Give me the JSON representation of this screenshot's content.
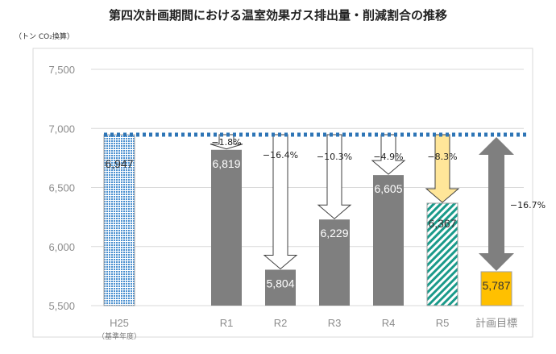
{
  "chart_data": {
    "type": "bar",
    "title": "第四次計画期間における温室効果ガス排出量・削減割合の推移",
    "ylabel": "（トン CO₂換算）",
    "ylim": [
      5500,
      7500
    ],
    "yticks": [
      "5,500",
      "6,000",
      "6,500",
      "7,000",
      "7,500"
    ],
    "ytick_values": [
      5500,
      6000,
      6500,
      7000,
      7500
    ],
    "grid": true,
    "categories": [
      "H25",
      "",
      "R1",
      "R2",
      "R3",
      "R4",
      "R5",
      "計画目標"
    ],
    "category_sublabels": {
      "H25": "（基準年度）"
    },
    "values": [
      6947,
      null,
      6819,
      5804,
      6229,
      6605,
      6367,
      5787
    ],
    "data_labels": [
      "6,947",
      "",
      "6,819",
      "5,804",
      "6,229",
      "6,605",
      "6,367",
      "5,787"
    ],
    "reduction_labels": [
      "",
      "",
      "−1.8%",
      "−16.4%",
      "−10.3%",
      "−4.9%",
      "−8.3%",
      "−16.7%"
    ],
    "baseline_value": 6947,
    "colors": {
      "base": "#4a90d0",
      "actual": "#7f7f7f",
      "r5_hatch": "#1a9a8a",
      "r5_arrow": "#ffe699",
      "target": "#ffc000",
      "baseline_line": "#2e75b6",
      "grid": "#d9d9d9"
    }
  }
}
